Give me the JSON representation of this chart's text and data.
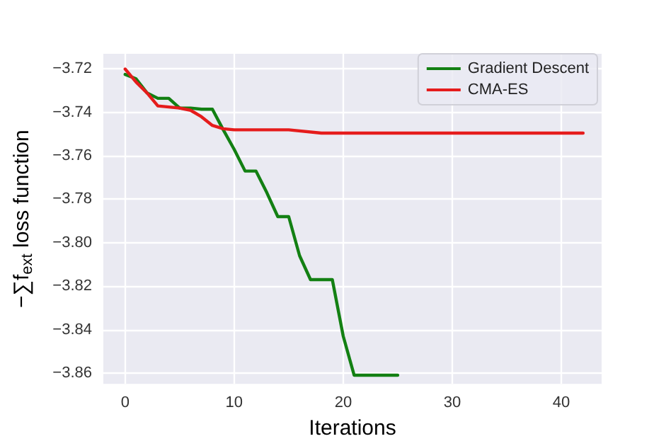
{
  "chart_data": {
    "type": "line",
    "xlabel": "Iterations",
    "ylabel": "−∑f$_{ext}$ loss function",
    "xlim": [
      -2,
      43.7
    ],
    "xticks": [
      0,
      10,
      20,
      30,
      40
    ],
    "ylim": [
      -3.865,
      -3.713
    ],
    "yticks": [
      -3.72,
      -3.74,
      -3.76,
      -3.78,
      {
        "value": -3.8,
        "label": "−3.80"
      },
      -3.82,
      -3.84,
      -3.86
    ],
    "grid": true,
    "legend": "top right",
    "marker": "none",
    "line_style": "solid",
    "series": [
      {
        "name": "Gradient Descent",
        "color": "#138013",
        "x": [
          0,
          1,
          2,
          3,
          4,
          5,
          6,
          7,
          8,
          9,
          10,
          11,
          12,
          13,
          14,
          15,
          16,
          17,
          18,
          19,
          20,
          21,
          25
        ],
        "values": [
          -3.7225,
          -3.7245,
          -3.731,
          -3.7335,
          -3.7335,
          -3.738,
          -3.738,
          -3.7385,
          -3.7385,
          -3.748,
          -3.757,
          -3.767,
          -3.767,
          -3.777,
          -3.788,
          -3.788,
          -3.806,
          -3.817,
          -3.817,
          -3.817,
          -3.843,
          -3.861,
          -3.861
        ]
      },
      {
        "name": "CMA-ES",
        "color": "#e51c1c",
        "x": [
          0,
          1,
          2,
          3,
          5,
          6,
          7,
          8,
          9,
          10,
          15,
          18,
          42
        ],
        "values": [
          -3.72,
          -3.726,
          -3.731,
          -3.737,
          -3.738,
          -3.739,
          -3.742,
          -3.746,
          -3.7475,
          -3.748,
          -3.748,
          -3.7495,
          -3.7495
        ]
      }
    ]
  }
}
